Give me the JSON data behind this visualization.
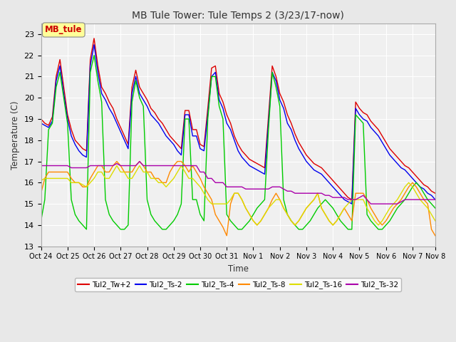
{
  "title": "MB Tule Tower: Tule Temps 2 (3/23/17-now)",
  "xlabel": "Time",
  "ylabel": "Temperature (C)",
  "ylim": [
    13.0,
    23.5
  ],
  "yticks": [
    13.0,
    14.0,
    15.0,
    16.0,
    17.0,
    18.0,
    19.0,
    20.0,
    21.0,
    22.0,
    23.0
  ],
  "xlabels": [
    "Oct 24",
    "Oct 25",
    "Oct 26",
    "Oct 27",
    "Oct 28",
    "Oct 29",
    "Oct 30",
    "Oct 31",
    "Nov 1",
    "Nov 2",
    "Nov 3",
    "Nov 4",
    "Nov 5",
    "Nov 6",
    "Nov 7",
    "Nov 8"
  ],
  "legend_label": "MB_tule",
  "legend_box_color": "#ffff99",
  "legend_text_color": "#cc0000",
  "bg_color": "#e8e8e8",
  "plot_bg_color": "#f0f0f0",
  "grid_color": "#ffffff",
  "series": [
    {
      "name": "Tul2_Tw+2",
      "color": "#dd0000",
      "lw": 1.0,
      "y": [
        19.0,
        18.8,
        18.7,
        19.1,
        21.0,
        21.8,
        20.5,
        19.2,
        18.5,
        18.0,
        17.8,
        17.6,
        17.5,
        21.8,
        22.8,
        21.5,
        20.5,
        20.2,
        19.8,
        19.5,
        19.0,
        18.6,
        18.2,
        17.8,
        20.5,
        21.3,
        20.5,
        20.2,
        19.9,
        19.5,
        19.3,
        19.0,
        18.8,
        18.5,
        18.2,
        18.0,
        17.8,
        17.6,
        19.4,
        19.4,
        18.5,
        18.5,
        17.8,
        17.7,
        19.5,
        21.4,
        21.5,
        20.2,
        19.8,
        19.2,
        18.8,
        18.2,
        17.8,
        17.5,
        17.3,
        17.1,
        17.0,
        16.9,
        16.8,
        16.7,
        19.1,
        21.5,
        21.0,
        20.2,
        19.8,
        19.2,
        18.8,
        18.3,
        17.9,
        17.6,
        17.3,
        17.1,
        16.9,
        16.8,
        16.7,
        16.5,
        16.3,
        16.1,
        15.9,
        15.7,
        15.5,
        15.3,
        15.2,
        19.8,
        19.5,
        19.3,
        19.2,
        18.9,
        18.7,
        18.5,
        18.2,
        17.9,
        17.6,
        17.4,
        17.2,
        17.0,
        16.8,
        16.7,
        16.5,
        16.3,
        16.1,
        15.9,
        15.8,
        15.6,
        15.5
      ]
    },
    {
      "name": "Tul2_Ts-2",
      "color": "#0000ee",
      "lw": 1.0,
      "y": [
        18.8,
        18.7,
        18.6,
        18.9,
        20.8,
        21.5,
        20.2,
        19.0,
        18.2,
        17.8,
        17.5,
        17.3,
        17.2,
        21.5,
        22.5,
        21.2,
        20.2,
        19.9,
        19.5,
        19.2,
        18.8,
        18.4,
        18.0,
        17.6,
        20.2,
        21.0,
        20.2,
        19.9,
        19.6,
        19.2,
        19.0,
        18.8,
        18.5,
        18.2,
        18.0,
        17.8,
        17.5,
        17.3,
        19.2,
        19.2,
        18.2,
        18.2,
        17.6,
        17.5,
        19.2,
        21.0,
        21.2,
        19.9,
        19.5,
        18.8,
        18.5,
        18.0,
        17.5,
        17.2,
        17.0,
        16.8,
        16.7,
        16.6,
        16.5,
        16.4,
        18.8,
        21.2,
        20.8,
        19.9,
        19.5,
        18.8,
        18.5,
        18.0,
        17.6,
        17.3,
        17.0,
        16.8,
        16.6,
        16.5,
        16.4,
        16.2,
        16.0,
        15.8,
        15.6,
        15.4,
        15.2,
        15.1,
        15.0,
        19.5,
        19.2,
        19.0,
        18.9,
        18.6,
        18.4,
        18.2,
        17.9,
        17.6,
        17.3,
        17.1,
        16.9,
        16.7,
        16.6,
        16.4,
        16.2,
        16.0,
        15.8,
        15.7,
        15.5,
        15.4,
        15.2
      ]
    },
    {
      "name": "Tul2_Ts-4",
      "color": "#00cc00",
      "lw": 1.0,
      "y": [
        14.2,
        15.2,
        18.5,
        18.8,
        20.5,
        21.2,
        20.0,
        18.8,
        15.2,
        14.5,
        14.2,
        14.0,
        13.8,
        21.2,
        22.0,
        20.8,
        19.8,
        15.2,
        14.5,
        14.2,
        14.0,
        13.8,
        13.8,
        14.0,
        19.8,
        20.8,
        20.0,
        19.6,
        15.2,
        14.5,
        14.2,
        14.0,
        13.8,
        13.8,
        14.0,
        14.2,
        14.5,
        15.0,
        19.0,
        19.0,
        15.2,
        15.2,
        14.5,
        14.2,
        19.0,
        21.0,
        21.0,
        19.6,
        19.0,
        14.5,
        14.2,
        14.0,
        13.8,
        13.8,
        14.0,
        14.2,
        14.5,
        14.8,
        15.0,
        15.2,
        18.5,
        21.2,
        20.5,
        19.6,
        15.2,
        14.5,
        14.2,
        14.0,
        13.8,
        13.8,
        14.0,
        14.2,
        14.5,
        14.8,
        15.0,
        15.2,
        15.0,
        14.8,
        14.5,
        14.2,
        14.0,
        13.8,
        13.8,
        19.2,
        19.0,
        18.8,
        14.5,
        14.2,
        14.0,
        13.8,
        13.8,
        14.0,
        14.2,
        14.5,
        14.8,
        15.0,
        15.2,
        15.5,
        15.8,
        16.0,
        15.8,
        15.5,
        15.2,
        15.0,
        14.8
      ]
    },
    {
      "name": "Tul2_Ts-8",
      "color": "#ff8800",
      "lw": 1.0,
      "y": [
        15.5,
        16.2,
        16.5,
        16.5,
        16.5,
        16.5,
        16.5,
        16.5,
        16.2,
        16.0,
        16.0,
        15.8,
        15.8,
        16.2,
        16.5,
        16.8,
        16.8,
        16.5,
        16.5,
        16.8,
        17.0,
        16.8,
        16.5,
        16.5,
        16.5,
        16.8,
        17.0,
        16.8,
        16.5,
        16.5,
        16.2,
        16.2,
        16.0,
        16.0,
        16.5,
        16.8,
        17.0,
        17.0,
        16.8,
        16.5,
        16.8,
        16.5,
        16.2,
        15.8,
        15.5,
        15.2,
        14.5,
        14.2,
        13.9,
        13.5,
        15.0,
        15.5,
        15.5,
        15.2,
        14.8,
        14.5,
        14.2,
        14.0,
        14.2,
        14.5,
        14.8,
        15.2,
        15.5,
        15.2,
        14.8,
        14.5,
        14.2,
        14.0,
        14.2,
        14.5,
        14.8,
        15.0,
        15.2,
        15.5,
        14.8,
        14.5,
        14.2,
        14.0,
        14.2,
        14.5,
        14.8,
        14.5,
        14.2,
        15.5,
        15.5,
        15.5,
        15.2,
        14.8,
        14.5,
        14.2,
        14.0,
        14.2,
        14.5,
        14.8,
        15.0,
        15.2,
        15.5,
        15.8,
        16.0,
        15.8,
        15.5,
        15.2,
        15.0,
        13.8,
        13.5
      ]
    },
    {
      "name": "Tul2_Ts-16",
      "color": "#dddd00",
      "lw": 1.0,
      "y": [
        16.1,
        16.2,
        16.2,
        16.2,
        16.2,
        16.2,
        16.2,
        16.2,
        16.0,
        16.0,
        16.0,
        15.9,
        15.8,
        16.0,
        16.2,
        16.5,
        16.5,
        16.2,
        16.2,
        16.5,
        16.8,
        16.5,
        16.5,
        16.2,
        16.2,
        16.5,
        16.8,
        16.5,
        16.5,
        16.2,
        16.2,
        16.0,
        16.0,
        15.8,
        16.0,
        16.2,
        16.5,
        16.8,
        16.5,
        16.2,
        16.2,
        16.0,
        15.8,
        15.5,
        15.2,
        15.0,
        15.0,
        15.0,
        15.0,
        15.0,
        15.2,
        15.5,
        15.5,
        15.2,
        14.8,
        14.5,
        14.2,
        14.0,
        14.2,
        14.5,
        14.8,
        15.0,
        15.2,
        15.2,
        14.8,
        14.5,
        14.2,
        14.0,
        14.2,
        14.5,
        14.8,
        15.0,
        15.2,
        15.5,
        14.8,
        14.5,
        14.2,
        14.0,
        14.2,
        14.5,
        14.8,
        15.0,
        15.2,
        15.2,
        15.2,
        15.2,
        14.8,
        14.5,
        14.2,
        14.0,
        14.2,
        14.5,
        14.8,
        15.0,
        15.2,
        15.5,
        15.8,
        16.0,
        15.8,
        15.5,
        15.2,
        15.0,
        14.8,
        14.5,
        14.2
      ]
    },
    {
      "name": "Tul2_Ts-32",
      "color": "#aa00aa",
      "lw": 1.0,
      "y": [
        16.8,
        16.8,
        16.8,
        16.8,
        16.8,
        16.8,
        16.8,
        16.8,
        16.7,
        16.7,
        16.7,
        16.7,
        16.7,
        16.8,
        16.8,
        16.8,
        16.8,
        16.8,
        16.8,
        16.8,
        16.9,
        16.8,
        16.8,
        16.8,
        16.8,
        16.8,
        17.0,
        16.8,
        16.8,
        16.8,
        16.8,
        16.8,
        16.8,
        16.8,
        16.8,
        16.8,
        16.8,
        16.8,
        16.8,
        16.8,
        16.8,
        16.8,
        16.5,
        16.5,
        16.2,
        16.2,
        16.0,
        16.0,
        16.0,
        15.8,
        15.8,
        15.8,
        15.8,
        15.8,
        15.7,
        15.7,
        15.7,
        15.7,
        15.7,
        15.7,
        15.7,
        15.8,
        15.8,
        15.8,
        15.7,
        15.6,
        15.6,
        15.5,
        15.5,
        15.5,
        15.5,
        15.5,
        15.5,
        15.5,
        15.5,
        15.4,
        15.4,
        15.3,
        15.3,
        15.3,
        15.3,
        15.2,
        15.2,
        15.2,
        15.3,
        15.4,
        15.2,
        15.0,
        15.0,
        15.0,
        15.0,
        15.0,
        15.0,
        15.0,
        15.0,
        15.1,
        15.2,
        15.2,
        15.2,
        15.2,
        15.2,
        15.2,
        15.2,
        15.2,
        15.2
      ]
    }
  ],
  "n_points": 105,
  "tick_positions": [
    0,
    7,
    14,
    21,
    28,
    35,
    42,
    49,
    56,
    63,
    70,
    77,
    84,
    91,
    98,
    104
  ],
  "tick_labels": [
    "Oct 24",
    "Oct 25",
    "Oct 26",
    "Oct 27",
    "Oct 28",
    "Oct 29",
    "Oct 30",
    "Oct 31",
    "Nov 1",
    "Nov 2",
    "Nov 3",
    "Nov 4",
    "Nov 5",
    "Nov 6",
    "Nov 7",
    "Nov 8"
  ]
}
